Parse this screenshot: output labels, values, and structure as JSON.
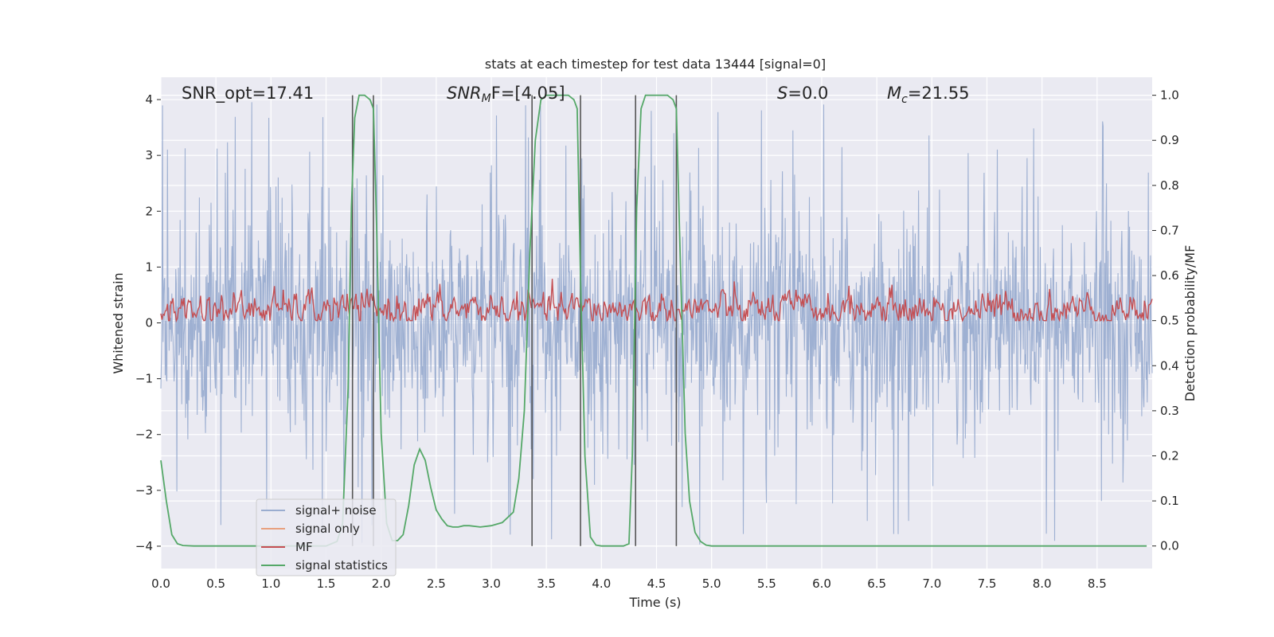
{
  "chart_data": {
    "type": "line",
    "title": "stats at each timestep for test data 13444 [signal=0]",
    "xlabel": "Time (s)",
    "ylabel_left": "Whitened strain",
    "ylabel_right": "Detection probability/MF",
    "xlim": [
      0,
      9.0
    ],
    "ylim_left": [
      -4.4,
      4.4
    ],
    "ylim_right": [
      -0.05,
      1.04
    ],
    "grid": true,
    "legend_position": "lower-left",
    "x_ticks": [
      "0.0",
      "0.5",
      "1.0",
      "1.5",
      "2.0",
      "2.5",
      "3.0",
      "3.5",
      "4.0",
      "4.5",
      "5.0",
      "5.5",
      "6.0",
      "6.5",
      "7.0",
      "7.5",
      "8.0",
      "8.5"
    ],
    "y_ticks_left": [
      "−4",
      "−3",
      "−2",
      "−1",
      "0",
      "1",
      "2",
      "3",
      "4"
    ],
    "y_ticks_right": [
      "0.0",
      "0.1",
      "0.2",
      "0.3",
      "0.4",
      "0.5",
      "0.6",
      "0.7",
      "0.8",
      "0.9",
      "1.0"
    ],
    "annotations": {
      "snr_opt": "SNR_opt=17.41",
      "snr_mf_base": "SNR",
      "snr_mf_sub": "M",
      "snr_mf_rest": "F=[4.05]",
      "s_label": "S",
      "s_rest": "=0.0",
      "mc_base": "M",
      "mc_sub": "c",
      "mc_rest": "=21.55"
    },
    "vertical_lines_x": [
      1.74,
      1.93,
      3.37,
      3.81,
      4.31,
      4.68
    ],
    "legend": [
      "signal+ noise",
      "signal only",
      "MF",
      "signal statistics"
    ],
    "colors": {
      "noise": "#9aadd0",
      "signal_only": "#e8a07f",
      "mf": "#c44e52",
      "stats": "#55a868",
      "vline": "#555555",
      "plot_bg": "#eaeaf2",
      "grid": "#ffffff"
    },
    "series": [
      {
        "name": "signal statistics",
        "axis": "right",
        "x": [
          0.0,
          0.05,
          0.1,
          0.15,
          0.2,
          0.3,
          0.5,
          1.0,
          1.5,
          1.6,
          1.65,
          1.7,
          1.73,
          1.76,
          1.8,
          1.85,
          1.9,
          1.93,
          1.96,
          2.0,
          2.05,
          2.1,
          2.15,
          2.2,
          2.25,
          2.3,
          2.35,
          2.4,
          2.45,
          2.5,
          2.55,
          2.6,
          2.65,
          2.7,
          2.75,
          2.8,
          2.9,
          3.0,
          3.1,
          3.2,
          3.25,
          3.3,
          3.35,
          3.4,
          3.45,
          3.5,
          3.55,
          3.6,
          3.7,
          3.75,
          3.78,
          3.81,
          3.85,
          3.9,
          3.95,
          4.0,
          4.1,
          4.2,
          4.25,
          4.28,
          4.32,
          4.36,
          4.4,
          4.5,
          4.6,
          4.65,
          4.68,
          4.72,
          4.76,
          4.8,
          4.85,
          4.9,
          4.95,
          5.0,
          5.5,
          6.0,
          6.5,
          7.0,
          7.5,
          8.0,
          8.5,
          8.95
        ],
        "values": [
          0.19,
          0.1,
          0.025,
          0.005,
          0.001,
          0.0,
          0.0,
          0.0,
          0.0,
          0.01,
          0.05,
          0.35,
          0.75,
          0.95,
          1.0,
          1.0,
          0.99,
          0.97,
          0.7,
          0.25,
          0.05,
          0.012,
          0.012,
          0.025,
          0.09,
          0.18,
          0.215,
          0.19,
          0.13,
          0.08,
          0.06,
          0.045,
          0.042,
          0.042,
          0.045,
          0.045,
          0.042,
          0.045,
          0.052,
          0.075,
          0.15,
          0.3,
          0.65,
          0.9,
          0.99,
          1.0,
          1.0,
          1.0,
          1.0,
          0.99,
          0.97,
          0.6,
          0.2,
          0.02,
          0.002,
          0.0,
          0.0,
          0.0,
          0.005,
          0.2,
          0.75,
          0.97,
          1.0,
          1.0,
          1.0,
          0.99,
          0.97,
          0.6,
          0.25,
          0.1,
          0.03,
          0.01,
          0.002,
          0.0,
          0.0,
          0.0,
          0.0,
          0.0,
          0.0,
          0.0,
          0.0,
          0.0
        ]
      },
      {
        "name": "signal+ noise",
        "axis": "left",
        "description_note": "dense gaussian noise band, approx amplitude 1.5, peaks to ~4",
        "sample_count": 1800,
        "core_amplitude": 1.5,
        "peak_amplitude": 4.0
      },
      {
        "name": "MF",
        "axis": "right",
        "mean": 0.525,
        "spread": 0.035,
        "sample_count": 900
      }
    ]
  }
}
